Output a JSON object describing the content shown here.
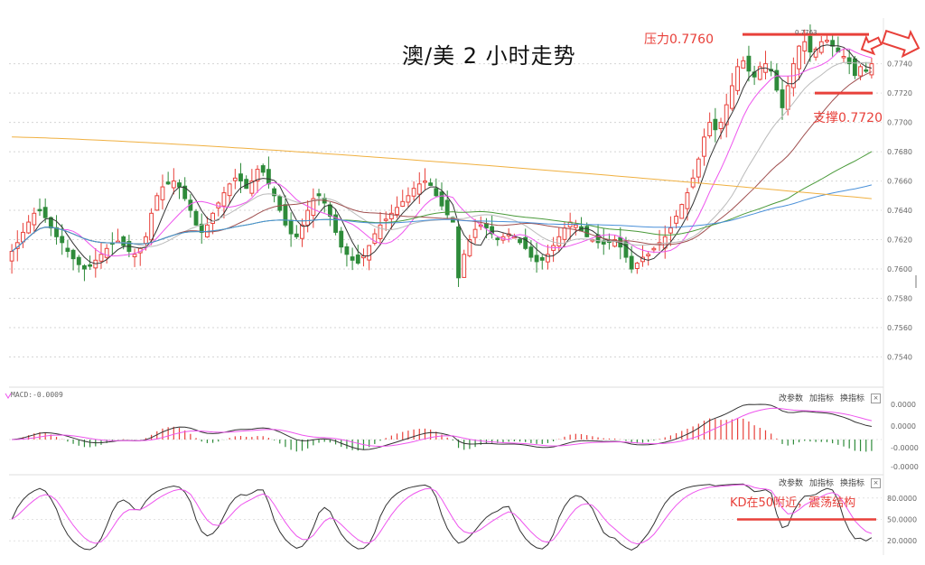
{
  "title": "澳/美 2 小时走势",
  "annotations": {
    "resistance": "压力0.7760",
    "support": "支撑0.7720",
    "kd_note": "KD在50附近，震荡结构",
    "high_tag": "0.7763"
  },
  "macd_label": "MACD:-0.0009",
  "panel_controls": [
    "改参数",
    "加指标",
    "换指标"
  ],
  "close_symbol": "×",
  "colors": {
    "up": "#e8403a",
    "down": "#2e8b3a",
    "ma5": "#333333",
    "ma10": "#ee55ee",
    "ma20": "#bbbbbb",
    "ma30": "#a05050",
    "ma60": "#4a9a3a",
    "ma120": "#4a90d9",
    "ma250": "#f0b040",
    "level": "#e8403a",
    "kd_k": "#333333",
    "kd_d": "#ee55ee",
    "dif": "#333333",
    "dea": "#ee55ee"
  },
  "chart_data": [
    {
      "type": "candlestick",
      "title": "澳/美 2 小时走势",
      "ylim": [
        0.752,
        0.7765
      ],
      "y_ticks": [
        "0.7740",
        "0.7720",
        "0.7700",
        "0.7680",
        "0.7660",
        "0.7640",
        "0.7620",
        "0.7600",
        "0.7580",
        "0.7560",
        "0.7540"
      ],
      "closes": [
        0.7612,
        0.7618,
        0.7625,
        0.7632,
        0.7638,
        0.764,
        0.7635,
        0.7628,
        0.7622,
        0.7618,
        0.7612,
        0.7607,
        0.7603,
        0.76,
        0.7602,
        0.7606,
        0.761,
        0.7614,
        0.7617,
        0.7619,
        0.7616,
        0.7612,
        0.761,
        0.7614,
        0.7622,
        0.7638,
        0.765,
        0.7656,
        0.7658,
        0.766,
        0.7656,
        0.7648,
        0.764,
        0.763,
        0.7625,
        0.763,
        0.7638,
        0.7645,
        0.7652,
        0.7658,
        0.7662,
        0.766,
        0.7655,
        0.766,
        0.7668,
        0.7666,
        0.7658,
        0.765,
        0.764,
        0.763,
        0.7624,
        0.7622,
        0.763,
        0.764,
        0.7648,
        0.765,
        0.7645,
        0.7636,
        0.7625,
        0.7615,
        0.761,
        0.7606,
        0.7604,
        0.7609,
        0.7616,
        0.7624,
        0.763,
        0.7634,
        0.7638,
        0.7642,
        0.7646,
        0.765,
        0.7655,
        0.7658,
        0.766,
        0.7657,
        0.765,
        0.7643,
        0.7637,
        0.7632,
        0.7594,
        0.761,
        0.762,
        0.7627,
        0.763,
        0.7628,
        0.7624,
        0.762,
        0.7622,
        0.7624,
        0.7622,
        0.7618,
        0.7614,
        0.7608,
        0.7605,
        0.7606,
        0.761,
        0.7616,
        0.7622,
        0.7628,
        0.7632,
        0.763,
        0.7626,
        0.7622,
        0.762,
        0.7618,
        0.7617,
        0.7619,
        0.762,
        0.7615,
        0.7608,
        0.76,
        0.7604,
        0.7608,
        0.761,
        0.7614,
        0.7618,
        0.7622,
        0.7628,
        0.7636,
        0.7644,
        0.7652,
        0.7662,
        0.7675,
        0.769,
        0.77,
        0.7695,
        0.77,
        0.7712,
        0.7725,
        0.7738,
        0.7742,
        0.7735,
        0.7731,
        0.7738,
        0.774,
        0.7735,
        0.7722,
        0.771,
        0.7725,
        0.774,
        0.7752,
        0.7755,
        0.7748,
        0.775,
        0.7755,
        0.7756,
        0.7752,
        0.7748,
        0.7745,
        0.774,
        0.7732,
        0.7738,
        0.7735,
        0.774
      ],
      "moving_averages": [
        {
          "name": "MA5",
          "color": "ma5"
        },
        {
          "name": "MA10",
          "color": "ma10"
        },
        {
          "name": "MA20",
          "color": "ma20"
        },
        {
          "name": "MA30",
          "color": "ma30"
        },
        {
          "name": "MA60",
          "color": "ma60"
        },
        {
          "name": "MA120",
          "color": "ma120"
        },
        {
          "name": "MA250",
          "color": "ma250",
          "start": 0.769,
          "end": 0.7648
        }
      ],
      "levels": [
        {
          "label": "压力0.7760",
          "value": 0.776
        },
        {
          "label": "支撑0.7720",
          "value": 0.772
        }
      ]
    },
    {
      "type": "macd",
      "label": "MACD:-0.0009",
      "y_ticks": [
        "0.0000",
        "0.0000",
        "-0.0000",
        "-0.0000"
      ]
    },
    {
      "type": "kd",
      "y_ticks": [
        "80.0000",
        "50.0000",
        "20.0000"
      ],
      "reference_line": 50
    }
  ]
}
